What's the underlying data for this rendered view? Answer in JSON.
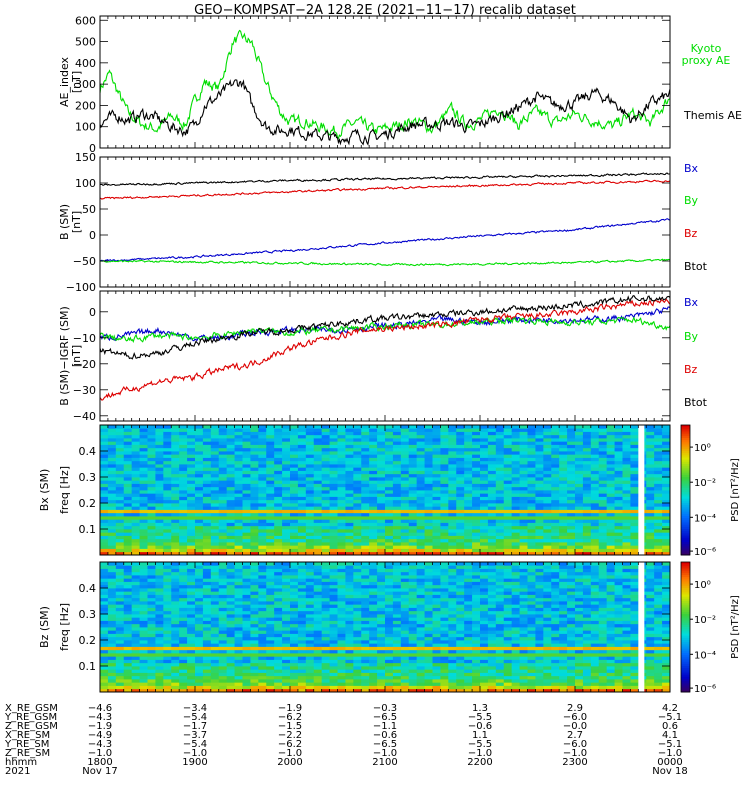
{
  "title": "GEO−KOMPSAT−2A 128.2E (2021−11−17) recalib dataset",
  "time_axis": {
    "range_hhmm": [
      "1800",
      "0000"
    ],
    "rows": [
      {
        "label": "X_RE_GSM",
        "values": [
          "−4.6",
          "−3.4",
          "−1.9",
          "−0.3",
          "1.3",
          "2.9",
          "4.2"
        ]
      },
      {
        "label": "Y_RE_GSM",
        "values": [
          "−4.3",
          "−5.4",
          "−6.2",
          "−6.5",
          "−5.5",
          "−6.0",
          "−5.1"
        ]
      },
      {
        "label": "Z_RE_GSM",
        "values": [
          "−1.9",
          "−1.7",
          "−1.5",
          "−1.1",
          "−0.6",
          "−0.0",
          "0.6"
        ]
      },
      {
        "label": "X_RE_SM",
        "values": [
          "−4.9",
          "−3.7",
          "−2.2",
          "−0.6",
          "1.1",
          "2.7",
          "4.1"
        ]
      },
      {
        "label": "Y_RE_SM",
        "values": [
          "−4.3",
          "−5.4",
          "−6.2",
          "−6.5",
          "−5.5",
          "−6.0",
          "−5.1"
        ]
      },
      {
        "label": "Z_RE_SM",
        "values": [
          "−1.0",
          "−1.0",
          "−1.0",
          "−1.0",
          "−1.0",
          "−1.0",
          "−1.0"
        ]
      },
      {
        "label": "hhmm",
        "values": [
          "1800",
          "1900",
          "2000",
          "2100",
          "2200",
          "2300",
          "0000"
        ]
      },
      {
        "label": "2021",
        "values": [
          "Nov 17",
          "",
          "",
          "",
          "",
          "",
          "Nov 18"
        ]
      }
    ]
  },
  "chart_data": [
    {
      "type": "line",
      "ylabel": "AE_index",
      "yunit": "[nT]",
      "ylim": [
        0,
        620
      ],
      "yticks": [
        0,
        100,
        200,
        300,
        400,
        500,
        600
      ],
      "series": [
        {
          "name": "Kyoto proxy AE",
          "color": "#00dd00",
          "x": [
            18.0,
            18.1,
            18.2,
            18.3,
            18.45,
            18.6,
            18.75,
            18.9,
            19.0,
            19.1,
            19.25,
            19.4,
            19.5,
            19.6,
            19.75,
            19.9,
            20.0,
            20.15,
            20.3,
            20.5,
            20.7,
            20.9,
            21.1,
            21.3,
            21.5,
            21.7,
            21.85,
            22.0,
            22.2,
            22.4,
            22.6,
            22.8,
            23.0,
            23.2,
            23.4,
            23.6,
            23.8,
            24.0
          ],
          "values": [
            280,
            350,
            250,
            160,
            110,
            90,
            150,
            110,
            220,
            310,
            280,
            500,
            520,
            490,
            300,
            170,
            120,
            130,
            100,
            80,
            120,
            80,
            100,
            130,
            90,
            180,
            110,
            130,
            190,
            110,
            170,
            120,
            160,
            130,
            100,
            160,
            120,
            240
          ]
        },
        {
          "name": "Themis AE",
          "color": "#000000",
          "x": [
            18.0,
            18.1,
            18.2,
            18.3,
            18.45,
            18.6,
            18.75,
            18.9,
            19.0,
            19.1,
            19.25,
            19.4,
            19.5,
            19.6,
            19.75,
            19.9,
            20.0,
            20.15,
            20.3,
            20.5,
            20.7,
            20.9,
            21.1,
            21.3,
            21.5,
            21.7,
            21.85,
            22.0,
            22.2,
            22.4,
            22.6,
            22.8,
            23.0,
            23.2,
            23.4,
            23.6,
            23.8,
            24.0
          ],
          "values": [
            120,
            140,
            150,
            130,
            160,
            140,
            100,
            80,
            110,
            200,
            240,
            300,
            310,
            200,
            100,
            80,
            90,
            70,
            60,
            45,
            60,
            50,
            80,
            110,
            110,
            120,
            100,
            110,
            150,
            190,
            240,
            200,
            210,
            260,
            220,
            130,
            210,
            250
          ]
        }
      ],
      "legend_placement": "right"
    },
    {
      "type": "line",
      "ylabel": "B (SM)",
      "yunit": "[nT]",
      "ylim": [
        -100,
        150
      ],
      "yticks": [
        -100,
        -50,
        0,
        50,
        100,
        150
      ],
      "series": [
        {
          "name": "Bx",
          "color": "#0000cc",
          "x": [
            18,
            19,
            20,
            21,
            22,
            23,
            24
          ],
          "values": [
            -50,
            -42,
            -30,
            -15,
            -2,
            10,
            30
          ]
        },
        {
          "name": "By",
          "color": "#00dd00",
          "x": [
            18,
            19,
            20,
            21,
            22,
            23,
            24
          ],
          "values": [
            -50,
            -52,
            -54,
            -57,
            -56,
            -53,
            -48
          ]
        },
        {
          "name": "Bz",
          "color": "#dd0000",
          "x": [
            18,
            19,
            20,
            21,
            22,
            23,
            24
          ],
          "values": [
            70,
            76,
            83,
            90,
            95,
            100,
            104
          ]
        },
        {
          "name": "Btot",
          "color": "#000000",
          "x": [
            18,
            19,
            20,
            21,
            22,
            23,
            24
          ],
          "values": [
            96,
            100,
            105,
            108,
            111,
            114,
            118
          ]
        }
      ],
      "legend_placement": "right"
    },
    {
      "type": "line",
      "ylabel": "B (SM)−IGRF (SM)",
      "yunit": "[nT]",
      "ylim": [
        -42,
        8
      ],
      "yticks": [
        -40,
        -30,
        -20,
        -10,
        0
      ],
      "series": [
        {
          "name": "Bx",
          "color": "#0000cc",
          "x": [
            18.0,
            18.3,
            18.6,
            19.0,
            19.3,
            19.6,
            20.0,
            20.4,
            20.8,
            21.2,
            21.6,
            22.0,
            22.4,
            22.8,
            23.2,
            23.6,
            24.0
          ],
          "values": [
            -10,
            -9,
            -7,
            -10,
            -10,
            -8,
            -7,
            -7,
            -6,
            -5,
            -3,
            -4,
            -3,
            -3,
            -3,
            -2,
            1
          ]
        },
        {
          "name": "By",
          "color": "#00dd00",
          "x": [
            18.0,
            18.3,
            18.6,
            19.0,
            19.3,
            19.6,
            20.0,
            20.4,
            20.8,
            21.2,
            21.6,
            22.0,
            22.4,
            22.8,
            23.2,
            23.6,
            24.0
          ],
          "values": [
            -9,
            -11,
            -9,
            -10,
            -9,
            -7,
            -8,
            -7,
            -6,
            -5,
            -5,
            -4,
            -3,
            -4,
            -4,
            -3,
            -6
          ]
        },
        {
          "name": "Bz",
          "color": "#dd0000",
          "x": [
            18.0,
            18.3,
            18.6,
            19.0,
            19.3,
            19.6,
            20.0,
            20.4,
            20.8,
            21.2,
            21.6,
            22.0,
            22.4,
            22.8,
            23.2,
            23.6,
            24.0
          ],
          "values": [
            -33,
            -30,
            -27,
            -25,
            -22,
            -20,
            -14,
            -10,
            -7,
            -6,
            -5,
            -3,
            -2,
            -1,
            1,
            3,
            4
          ]
        },
        {
          "name": "Btot",
          "color": "#000000",
          "x": [
            18.0,
            18.3,
            18.6,
            19.0,
            19.3,
            19.6,
            20.0,
            20.4,
            20.8,
            21.2,
            21.6,
            22.0,
            22.4,
            22.8,
            23.2,
            23.6,
            24.0
          ],
          "values": [
            -15,
            -17,
            -16,
            -12,
            -10,
            -8,
            -7,
            -5,
            -3,
            -2,
            -1,
            0,
            1,
            2,
            3,
            5,
            5
          ]
        }
      ],
      "legend_placement": "right"
    },
    {
      "type": "heatmap",
      "ylabel": "Bx (SM)",
      "yunit_label": "freq",
      "yunit": "[Hz]",
      "ylim": [
        0,
        0.5
      ],
      "yticks": [
        0.1,
        0.2,
        0.3,
        0.4
      ],
      "colorbar": {
        "label": "PSD",
        "unit": "[nT²/Hz]",
        "ticks": [
          "10⁰",
          "10⁻²",
          "10⁻⁴",
          "10⁻⁶"
        ]
      },
      "gap_hhmm": "2340"
    },
    {
      "type": "heatmap",
      "ylabel": "Bz (SM)",
      "yunit_label": "freq",
      "yunit": "[Hz]",
      "ylim": [
        0,
        0.5
      ],
      "yticks": [
        0.1,
        0.2,
        0.3,
        0.4
      ],
      "colorbar": {
        "label": "PSD",
        "unit": "[nT²/Hz]",
        "ticks": [
          "10⁰",
          "10⁻²",
          "10⁻⁴",
          "10⁻⁶"
        ]
      },
      "gap_hhmm": "2340"
    }
  ]
}
